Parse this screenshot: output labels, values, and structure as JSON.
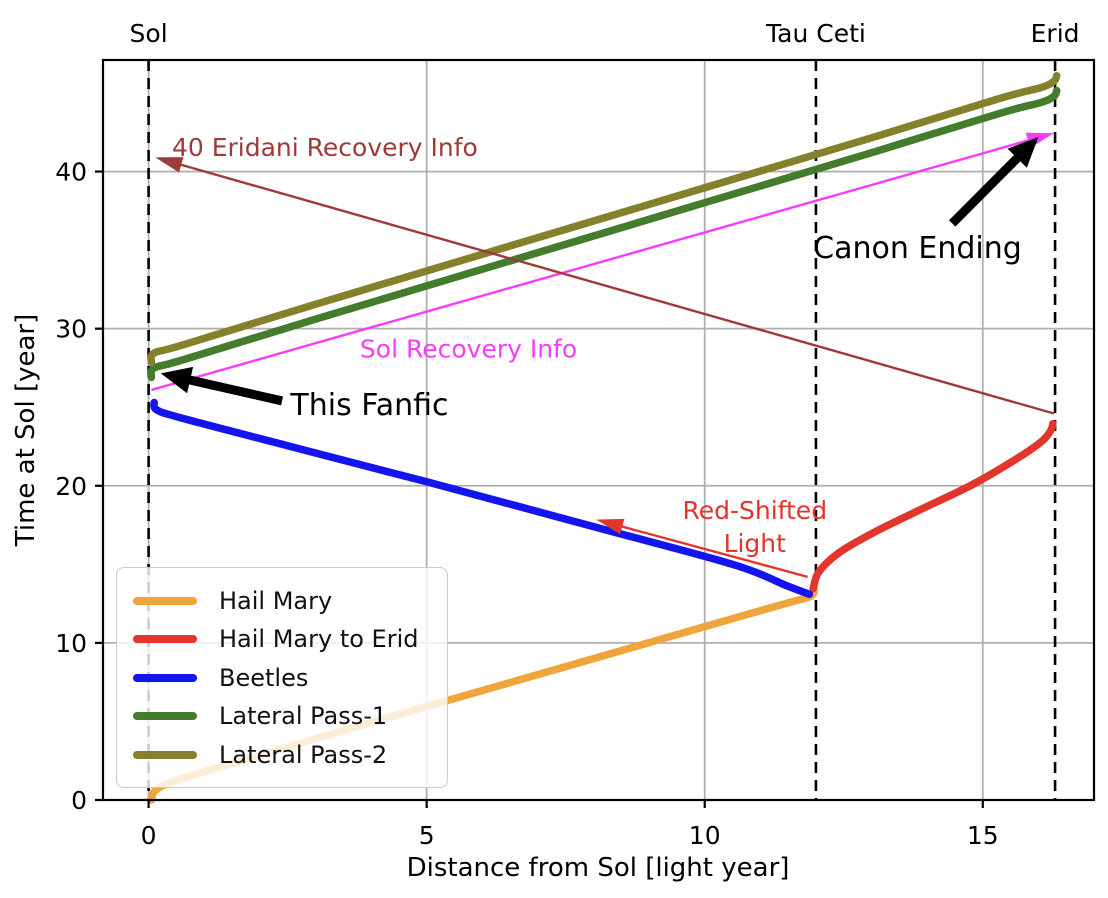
{
  "chart_data": {
    "type": "line",
    "title": "",
    "axes": {
      "xlabel": "Distance from Sol [light year]",
      "ylabel": "Time at Sol [year]",
      "xlim": [
        -0.82,
        17.0
      ],
      "ylim": [
        0,
        47.1
      ],
      "xticks": [
        0,
        5,
        10,
        15
      ],
      "yticks": [
        0,
        10,
        20,
        30,
        40
      ],
      "grid": true,
      "grid_color": "#b0b0b0",
      "spine_color": "#000000",
      "landmark_line_color": "#000000"
    },
    "landmarks": [
      {
        "label": "Sol",
        "x": 0
      },
      {
        "label": "Tau Ceti",
        "x": 12
      },
      {
        "label": "Erid",
        "x": 16.3
      }
    ],
    "series": [
      {
        "name": "Hail Mary",
        "color": "#f0a43c",
        "points": [
          [
            0.05,
            0.0
          ],
          [
            0.12,
            0.6
          ],
          [
            0.5,
            1.25
          ],
          [
            2,
            2.85
          ],
          [
            5,
            5.95
          ],
          [
            8,
            9.0
          ],
          [
            11,
            12.05
          ],
          [
            11.6,
            12.65
          ],
          [
            11.9,
            12.95
          ],
          [
            11.97,
            13.25
          ]
        ]
      },
      {
        "name": "Hail Mary to Erid",
        "color": "#e2352b",
        "points": [
          [
            11.95,
            13.45
          ],
          [
            12.05,
            14.5
          ],
          [
            12.4,
            15.7
          ],
          [
            13.0,
            16.95
          ],
          [
            13.8,
            18.35
          ],
          [
            14.8,
            20.05
          ],
          [
            15.6,
            21.7
          ],
          [
            16.05,
            22.8
          ],
          [
            16.22,
            23.5
          ],
          [
            16.26,
            23.95
          ]
        ]
      },
      {
        "name": "Beetles",
        "color": "#1414ee",
        "points": [
          [
            0.1,
            25.3
          ],
          [
            0.14,
            24.85
          ],
          [
            0.55,
            24.35
          ],
          [
            2.5,
            22.55
          ],
          [
            5,
            20.25
          ],
          [
            8,
            17.4
          ],
          [
            10.5,
            15.0
          ],
          [
            11.5,
            13.6
          ],
          [
            11.88,
            13.1
          ]
        ]
      },
      {
        "name": "Lateral Pass-1",
        "color": "#447c2e",
        "points": [
          [
            0.05,
            26.9
          ],
          [
            0.1,
            27.5
          ],
          [
            0.6,
            28.0
          ],
          [
            3,
            30.6
          ],
          [
            8,
            35.9
          ],
          [
            13,
            41.2
          ],
          [
            15.3,
            43.7
          ],
          [
            16.05,
            44.4
          ],
          [
            16.28,
            44.8
          ],
          [
            16.33,
            45.15
          ]
        ]
      },
      {
        "name": "Lateral Pass-2",
        "color": "#84802c",
        "points": [
          [
            0.05,
            27.85
          ],
          [
            0.1,
            28.45
          ],
          [
            0.6,
            28.95
          ],
          [
            3,
            31.55
          ],
          [
            8,
            36.85
          ],
          [
            13,
            42.15
          ],
          [
            15.3,
            44.65
          ],
          [
            16.05,
            45.35
          ],
          [
            16.28,
            45.75
          ],
          [
            16.33,
            46.1
          ]
        ]
      }
    ],
    "light_arrows": [
      {
        "label": "Sol Recovery Info",
        "color": "#f83cf8",
        "from": [
          0.05,
          26.1
        ],
        "to": [
          16.28,
          42.45
        ],
        "label_lines": [
          "Sol Recovery Info"
        ],
        "label_pos": [
          3.8,
          28.15
        ],
        "anchor": "start"
      },
      {
        "label": "40 Eridani Recovery Info",
        "color": "#9e3a38",
        "from": [
          16.28,
          24.6
        ],
        "to": [
          0.12,
          40.9
        ],
        "label_lines": [
          "40 Eridani Recovery Info"
        ],
        "label_pos": [
          0.42,
          41.0
        ],
        "anchor": "start"
      },
      {
        "label": "Red-Shifted Light",
        "color": "#e2352b",
        "from": [
          11.85,
          14.2
        ],
        "to": [
          8.05,
          17.85
        ],
        "label_lines": [
          "Red-Shifted",
          "Light"
        ],
        "label_pos": [
          10.9,
          17.9
        ],
        "anchor": "middle"
      }
    ],
    "annotations": [
      {
        "label": "This Fanfic",
        "color": "#000000",
        "text_pos": [
          2.55,
          24.5
        ],
        "anchor": "start",
        "arrow_from": [
          2.4,
          25.4
        ],
        "arrow_to": [
          0.22,
          27.15
        ]
      },
      {
        "label": "Canon Ending",
        "color": "#000000",
        "text_pos": [
          11.95,
          34.5
        ],
        "anchor": "start",
        "arrow_from": [
          14.45,
          36.7
        ],
        "arrow_to": [
          16.0,
          42.2
        ]
      }
    ],
    "legend": {
      "location": "lower left",
      "entries": [
        {
          "label": "Hail Mary",
          "color": "#f0a43c"
        },
        {
          "label": "Hail Mary to Erid",
          "color": "#e2352b"
        },
        {
          "label": "Beetles",
          "color": "#1414ee"
        },
        {
          "label": "Lateral Pass-1",
          "color": "#447c2e"
        },
        {
          "label": "Lateral Pass-2",
          "color": "#84802c"
        }
      ]
    }
  }
}
